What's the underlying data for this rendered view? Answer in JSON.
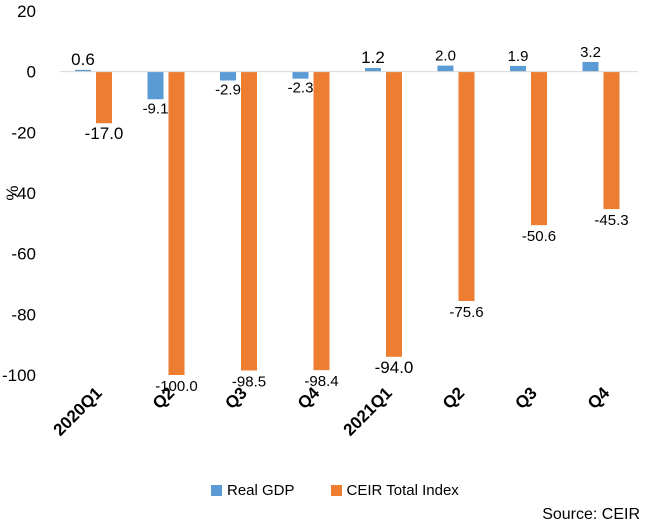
{
  "chart_data": {
    "type": "bar",
    "categories": [
      "2020Q1",
      "Q2",
      "Q3",
      "Q4",
      "2021Q1",
      "Q2",
      "Q3",
      "Q4"
    ],
    "series": [
      {
        "name": "Real GDP",
        "color": "#5b9bd5",
        "values": [
          0.6,
          -9.1,
          -2.9,
          -2.3,
          1.2,
          2.0,
          1.9,
          3.2
        ],
        "labels": [
          "0.6",
          "-9.1",
          "-2.9",
          "-2.3",
          "1.2",
          "2.0",
          "1.9",
          "3.2"
        ]
      },
      {
        "name": "CEIR Total Index",
        "color": "#ed7d31",
        "values": [
          -17.0,
          -100.0,
          -98.5,
          -98.4,
          -94.0,
          -75.6,
          -50.6,
          -45.3
        ],
        "labels": [
          "-17.0",
          "-100.0",
          "-98.5",
          "-98.4",
          "-94.0",
          "-75.6",
          "-50.6",
          "-45.3"
        ]
      }
    ],
    "ylabel": "%",
    "ylim": [
      -100,
      20
    ],
    "yticks": [
      "20",
      "0",
      "-20",
      "-40",
      "-60",
      "-80",
      "-100"
    ],
    "grid": false,
    "legend_position": "bottom"
  },
  "source_text": "Source: CEIR"
}
